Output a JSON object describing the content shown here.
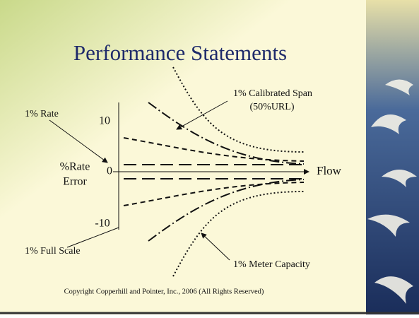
{
  "title": "Performance Statements",
  "axis": {
    "y_label_line1": "%Rate",
    "y_label_line2": "Error",
    "x_label": "Flow",
    "ticks": [
      "10",
      "0",
      "-10"
    ]
  },
  "callouts": {
    "rate": "1% Rate",
    "calibrated_span_line1": "1% Calibrated Span",
    "calibrated_span_line2": "(50%URL)",
    "full_scale": "1% Full Scale",
    "meter_capacity": "1% Meter Capacity"
  },
  "footer": "Copyright Copperhill and Pointer, Inc., 2006 (All Rights Reserved)"
}
